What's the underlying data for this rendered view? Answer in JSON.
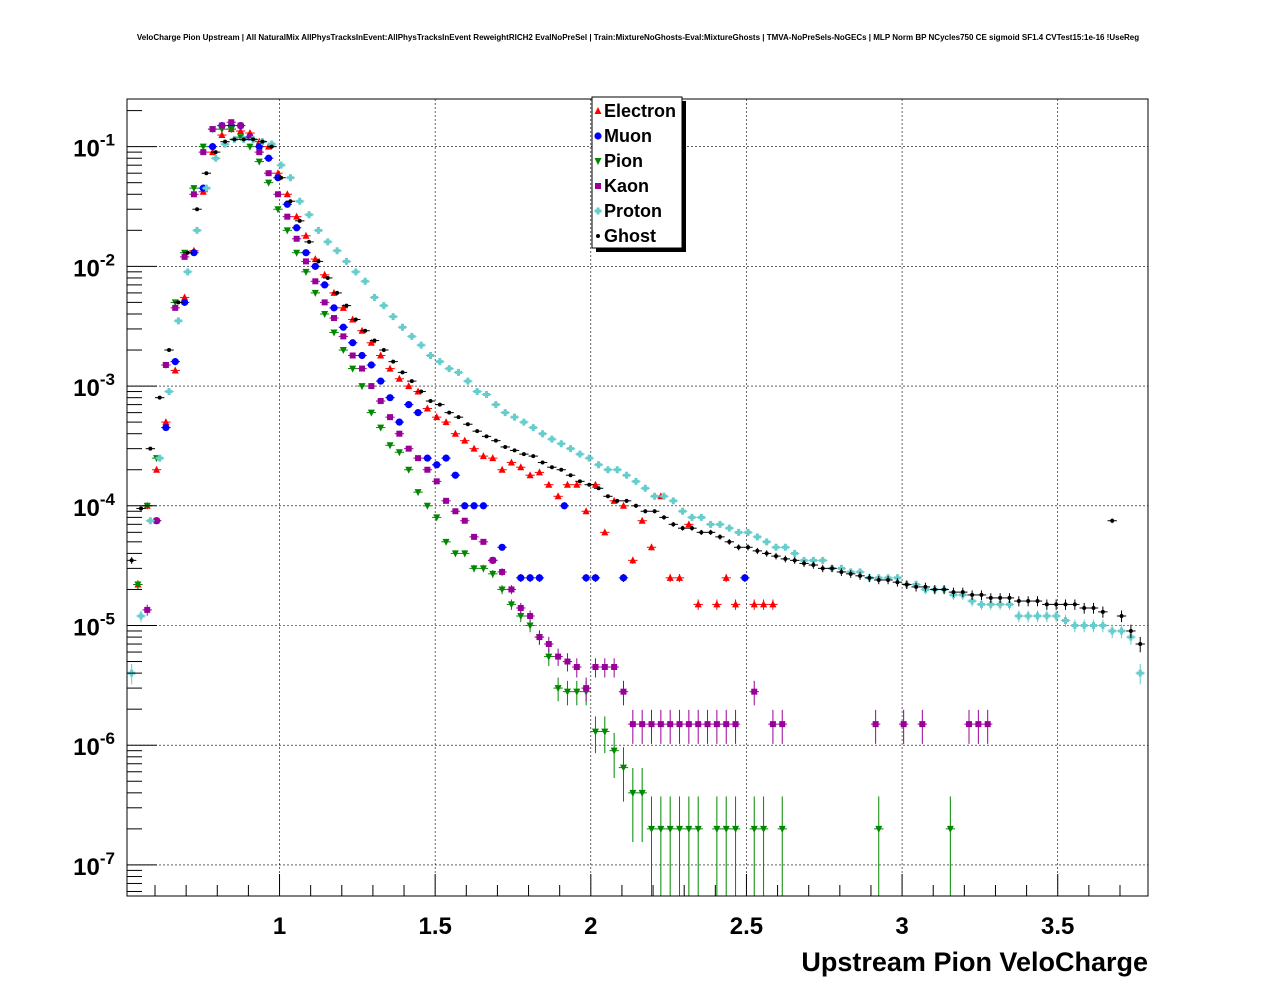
{
  "chart_data": {
    "type": "scatter",
    "title": "VeloCharge Pion Upstream | All NaturalMix AllPhysTracksInEvent:AllPhysTracksInEvent ReweightRICH2 EvalNoPreSel | Train:MixtureNoGhosts-Eval:MixtureGhosts | TMVA-NoPreSels-NoGECs | MLP Norm BP NCycles750 CE sigmoid SF1.4 CVTest15:1e-16 !UseReg",
    "xlabel": "Upstream Pion VeloCharge",
    "ylabel": "",
    "xlim": [
      0.51,
      3.79
    ],
    "ylim": [
      5.5e-08,
      0.25
    ],
    "log_y": true,
    "grid": true,
    "legend_position": "top-center",
    "x_ticks": [
      "1",
      "1.5",
      "2",
      "2.5",
      "3",
      "3.5"
    ],
    "y_ticks": [
      {
        "base": "10",
        "exp": "-1"
      },
      {
        "base": "10",
        "exp": "-2"
      },
      {
        "base": "10",
        "exp": "-3"
      },
      {
        "base": "10",
        "exp": "-4"
      },
      {
        "base": "10",
        "exp": "-5"
      },
      {
        "base": "10",
        "exp": "-6"
      },
      {
        "base": "10",
        "exp": "-7"
      }
    ],
    "series": [
      {
        "name": "Electron",
        "color": "#ff0000",
        "marker": "triangle-up",
        "x": [
          0.545,
          0.575,
          0.605,
          0.635,
          0.665,
          0.695,
          0.725,
          0.755,
          0.785,
          0.815,
          0.845,
          0.875,
          0.905,
          0.935,
          0.965,
          0.995,
          1.025,
          1.055,
          1.085,
          1.115,
          1.145,
          1.175,
          1.205,
          1.235,
          1.265,
          1.295,
          1.325,
          1.355,
          1.385,
          1.415,
          1.445,
          1.475,
          1.505,
          1.535,
          1.565,
          1.595,
          1.625,
          1.655,
          1.685,
          1.715,
          1.745,
          1.775,
          1.805,
          1.835,
          1.865,
          1.895,
          1.925,
          1.955,
          1.985,
          2.015,
          2.045,
          2.075,
          2.105,
          2.135,
          2.165,
          2.195,
          2.225,
          2.255,
          2.285,
          2.315,
          2.345,
          2.405,
          2.435,
          2.465,
          2.525,
          2.555,
          2.585
        ],
        "y": [
          2.2e-05,
          0.0001,
          0.0002,
          0.0005,
          0.00135,
          0.0055,
          0.0135,
          0.042,
          0.09,
          0.125,
          0.14,
          0.135,
          0.13,
          0.11,
          0.1,
          0.06,
          0.04,
          0.026,
          0.018,
          0.0115,
          0.0085,
          0.006,
          0.0045,
          0.0036,
          0.0029,
          0.0023,
          0.0018,
          0.0014,
          0.00115,
          0.001,
          0.0009,
          0.00065,
          0.00055,
          0.0005,
          0.0004,
          0.00035,
          0.0003,
          0.00026,
          0.00025,
          0.0002,
          0.00023,
          0.00021,
          0.00018,
          0.00019,
          0.00015,
          0.00012,
          0.00015,
          0.00015,
          9e-05,
          0.00015,
          6e-05,
          0.00011,
          0.0001,
          3.5e-05,
          7.5e-05,
          4.5e-05,
          0.00012,
          2.5e-05,
          2.5e-05,
          7e-05,
          1.5e-05,
          1.5e-05,
          2.5e-05,
          1.5e-05,
          1.5e-05,
          1.5e-05,
          1.5e-05
        ]
      },
      {
        "name": "Muon",
        "color": "#0000ff",
        "marker": "circle",
        "x": [
          0.605,
          0.635,
          0.665,
          0.695,
          0.725,
          0.755,
          0.785,
          0.815,
          0.845,
          0.875,
          0.905,
          0.935,
          0.965,
          0.995,
          1.025,
          1.055,
          1.085,
          1.115,
          1.145,
          1.175,
          1.205,
          1.235,
          1.265,
          1.295,
          1.325,
          1.355,
          1.385,
          1.415,
          1.445,
          1.475,
          1.505,
          1.535,
          1.565,
          1.595,
          1.625,
          1.655,
          1.685,
          1.715,
          1.775,
          1.805,
          1.835,
          1.915,
          1.985,
          2.015,
          2.105,
          2.495
        ],
        "y": [
          7.5e-05,
          0.00045,
          0.0016,
          0.005,
          0.013,
          0.045,
          0.1,
          0.15,
          0.15,
          0.15,
          0.12,
          0.1,
          0.08,
          0.055,
          0.033,
          0.021,
          0.013,
          0.01,
          0.007,
          0.0045,
          0.0031,
          0.0023,
          0.0018,
          0.0015,
          0.0011,
          0.0008,
          0.0005,
          0.0007,
          0.0006,
          0.00025,
          0.00022,
          0.00025,
          0.00018,
          0.0001,
          0.0001,
          0.0001,
          3.5e-05,
          4.5e-05,
          2.5e-05,
          2.5e-05,
          2.5e-05,
          0.0001,
          2.5e-05,
          2.5e-05,
          2.5e-05,
          2.5e-05
        ]
      },
      {
        "name": "Pion",
        "color": "#008800",
        "marker": "triangle-down",
        "x": [
          0.545,
          0.575,
          0.605,
          0.635,
          0.665,
          0.695,
          0.725,
          0.755,
          0.785,
          0.815,
          0.845,
          0.875,
          0.905,
          0.935,
          0.965,
          0.995,
          1.025,
          1.055,
          1.085,
          1.115,
          1.145,
          1.175,
          1.205,
          1.235,
          1.265,
          1.295,
          1.325,
          1.355,
          1.385,
          1.415,
          1.445,
          1.475,
          1.505,
          1.535,
          1.565,
          1.595,
          1.625,
          1.655,
          1.685,
          1.715,
          1.745,
          1.775,
          1.805,
          1.835,
          1.865,
          1.895,
          1.925,
          1.955,
          1.985,
          2.015,
          2.045,
          2.075,
          2.105,
          2.135,
          2.165,
          2.195,
          2.225,
          2.255,
          2.285,
          2.315,
          2.345,
          2.405,
          2.435,
          2.465,
          2.525,
          2.555,
          2.615,
          2.925,
          3.155
        ],
        "y": [
          2.2e-05,
          0.0001,
          0.00025,
          0.0015,
          0.005,
          0.013,
          0.045,
          0.1,
          0.14,
          0.14,
          0.14,
          0.12,
          0.1,
          0.075,
          0.05,
          0.03,
          0.02,
          0.013,
          0.009,
          0.006,
          0.004,
          0.0028,
          0.002,
          0.0014,
          0.001,
          0.0006,
          0.00045,
          0.00032,
          0.00028,
          0.0002,
          0.00013,
          0.0001,
          8e-05,
          5e-05,
          4e-05,
          4e-05,
          3e-05,
          3e-05,
          2.7e-05,
          2e-05,
          1.5e-05,
          1.2e-05,
          1e-05,
          8e-06,
          5.5e-06,
          3e-06,
          2.8e-06,
          2.8e-06,
          2.8e-06,
          1.3e-06,
          1.3e-06,
          9e-07,
          6.5e-07,
          4e-07,
          4e-07,
          2e-07,
          2e-07,
          2e-07,
          2e-07,
          2e-07,
          2e-07,
          2e-07,
          2e-07,
          2e-07,
          2e-07,
          2e-07,
          2e-07,
          2e-07,
          2e-07
        ]
      },
      {
        "name": "Kaon",
        "color": "#990099",
        "marker": "square",
        "x": [
          0.575,
          0.605,
          0.635,
          0.665,
          0.695,
          0.725,
          0.755,
          0.785,
          0.815,
          0.845,
          0.875,
          0.905,
          0.935,
          0.965,
          0.995,
          1.025,
          1.055,
          1.085,
          1.115,
          1.145,
          1.175,
          1.205,
          1.235,
          1.265,
          1.295,
          1.325,
          1.355,
          1.385,
          1.415,
          1.445,
          1.475,
          1.505,
          1.535,
          1.565,
          1.595,
          1.625,
          1.655,
          1.685,
          1.715,
          1.745,
          1.775,
          1.805,
          1.835,
          1.865,
          1.895,
          1.925,
          1.955,
          1.985,
          2.015,
          2.045,
          2.075,
          2.105,
          2.135,
          2.165,
          2.195,
          2.225,
          2.255,
          2.285,
          2.315,
          2.345,
          2.375,
          2.405,
          2.435,
          2.465,
          2.525,
          2.585,
          2.615,
          2.915,
          3.005,
          3.065,
          3.215,
          3.245,
          3.275
        ],
        "y": [
          1.35e-05,
          7.5e-05,
          0.0015,
          0.0045,
          0.012,
          0.04,
          0.09,
          0.14,
          0.15,
          0.16,
          0.15,
          0.12,
          0.09,
          0.06,
          0.04,
          0.026,
          0.017,
          0.011,
          0.0075,
          0.005,
          0.0037,
          0.0026,
          0.0018,
          0.0014,
          0.001,
          0.00075,
          0.00055,
          0.0004,
          0.0003,
          0.00025,
          0.0002,
          0.00016,
          0.00011,
          9e-05,
          7.5e-05,
          5.5e-05,
          5e-05,
          3.5e-05,
          2.8e-05,
          2e-05,
          1.4e-05,
          1.2e-05,
          8e-06,
          7e-06,
          5.5e-06,
          5e-06,
          4.5e-06,
          3e-06,
          4.5e-06,
          4.5e-06,
          4.5e-06,
          2.8e-06,
          1.5e-06,
          1.5e-06,
          1.5e-06,
          1.5e-06,
          1.5e-06,
          1.5e-06,
          1.5e-06,
          1.5e-06,
          1.5e-06,
          1.5e-06,
          1.5e-06,
          1.5e-06,
          2.8e-06,
          1.5e-06,
          1.5e-06,
          1.5e-06,
          1.5e-06,
          1.5e-06,
          1.5e-06,
          1.5e-06,
          1.5e-06
        ]
      },
      {
        "name": "Proton",
        "color": "#66cccc",
        "marker": "cross",
        "x": [
          0.525,
          0.555,
          0.585,
          0.615,
          0.645,
          0.675,
          0.705,
          0.735,
          0.765,
          0.795,
          0.825,
          0.855,
          0.885,
          0.915,
          0.945,
          0.975,
          1.005,
          1.035,
          1.065,
          1.095,
          1.125,
          1.155,
          1.185,
          1.215,
          1.245,
          1.275,
          1.305,
          1.335,
          1.365,
          1.395,
          1.425,
          1.455,
          1.485,
          1.515,
          1.545,
          1.575,
          1.605,
          1.635,
          1.665,
          1.695,
          1.725,
          1.755,
          1.785,
          1.815,
          1.845,
          1.875,
          1.905,
          1.935,
          1.965,
          1.995,
          2.025,
          2.055,
          2.085,
          2.115,
          2.145,
          2.175,
          2.205,
          2.235,
          2.265,
          2.295,
          2.325,
          2.355,
          2.385,
          2.415,
          2.445,
          2.475,
          2.505,
          2.535,
          2.565,
          2.595,
          2.625,
          2.655,
          2.685,
          2.715,
          2.745,
          2.775,
          2.805,
          2.835,
          2.865,
          2.895,
          2.925,
          2.955,
          2.985,
          3.015,
          3.045,
          3.075,
          3.105,
          3.135,
          3.165,
          3.195,
          3.225,
          3.255,
          3.285,
          3.315,
          3.345,
          3.375,
          3.405,
          3.435,
          3.465,
          3.495,
          3.525,
          3.555,
          3.585,
          3.615,
          3.645,
          3.675,
          3.705,
          3.735,
          3.765
        ],
        "y": [
          4e-06,
          1.2e-05,
          7.5e-05,
          0.00025,
          0.0009,
          0.0035,
          0.009,
          0.02,
          0.045,
          0.08,
          0.105,
          0.115,
          0.115,
          0.115,
          0.11,
          0.105,
          0.07,
          0.055,
          0.035,
          0.027,
          0.02,
          0.016,
          0.0135,
          0.011,
          0.009,
          0.0075,
          0.0055,
          0.0047,
          0.0038,
          0.0031,
          0.0026,
          0.0022,
          0.0018,
          0.0016,
          0.0014,
          0.0013,
          0.0011,
          0.0009,
          0.00085,
          0.0007,
          0.0006,
          0.00055,
          0.0005,
          0.00045,
          0.0004,
          0.00036,
          0.00033,
          0.0003,
          0.00027,
          0.00025,
          0.00022,
          0.0002,
          0.0002,
          0.00018,
          0.00016,
          0.00014,
          0.00012,
          0.00012,
          0.00011,
          9e-05,
          8e-05,
          8e-05,
          7e-05,
          7e-05,
          6.5e-05,
          6e-05,
          6e-05,
          5.5e-05,
          5e-05,
          4.5e-05,
          4.5e-05,
          4e-05,
          3.5e-05,
          3.5e-05,
          3.5e-05,
          3e-05,
          3e-05,
          2.8e-05,
          2.8e-05,
          2.5e-05,
          2.5e-05,
          2.5e-05,
          2.5e-05,
          2.2e-05,
          2.2e-05,
          2e-05,
          2e-05,
          2e-05,
          1.8e-05,
          1.8e-05,
          1.6e-05,
          1.5e-05,
          1.5e-05,
          1.5e-05,
          1.5e-05,
          1.2e-05,
          1.2e-05,
          1.2e-05,
          1.2e-05,
          1.2e-05,
          1.1e-05,
          1e-05,
          1e-05,
          1e-05,
          1e-05,
          9e-06,
          9e-06,
          8e-06,
          4e-06
        ]
      },
      {
        "name": "Ghost",
        "color": "#000000",
        "marker": "dot",
        "x": [
          0.525,
          0.555,
          0.585,
          0.615,
          0.645,
          0.675,
          0.705,
          0.735,
          0.765,
          0.795,
          0.825,
          0.855,
          0.885,
          0.915,
          0.945,
          0.975,
          1.005,
          1.035,
          1.065,
          1.095,
          1.125,
          1.155,
          1.185,
          1.215,
          1.245,
          1.275,
          1.305,
          1.335,
          1.365,
          1.395,
          1.425,
          1.455,
          1.485,
          1.515,
          1.545,
          1.575,
          1.605,
          1.635,
          1.665,
          1.695,
          1.725,
          1.755,
          1.785,
          1.815,
          1.845,
          1.875,
          1.905,
          1.935,
          1.965,
          1.995,
          2.025,
          2.055,
          2.085,
          2.115,
          2.145,
          2.175,
          2.205,
          2.235,
          2.265,
          2.295,
          2.325,
          2.355,
          2.385,
          2.415,
          2.445,
          2.475,
          2.505,
          2.535,
          2.565,
          2.595,
          2.625,
          2.655,
          2.685,
          2.715,
          2.745,
          2.775,
          2.805,
          2.835,
          2.865,
          2.895,
          2.925,
          2.955,
          2.985,
          3.015,
          3.045,
          3.075,
          3.105,
          3.135,
          3.165,
          3.195,
          3.225,
          3.255,
          3.285,
          3.315,
          3.345,
          3.375,
          3.405,
          3.435,
          3.465,
          3.495,
          3.525,
          3.555,
          3.585,
          3.615,
          3.645,
          3.675,
          3.705,
          3.735,
          3.765
        ],
        "y": [
          3.5e-05,
          9.5e-05,
          0.0003,
          0.0008,
          0.002,
          0.005,
          0.013,
          0.03,
          0.06,
          0.09,
          0.11,
          0.115,
          0.115,
          0.115,
          0.11,
          0.1,
          0.055,
          0.035,
          0.024,
          0.016,
          0.011,
          0.008,
          0.006,
          0.0047,
          0.0036,
          0.0029,
          0.0024,
          0.002,
          0.0016,
          0.0013,
          0.0011,
          0.0009,
          0.00075,
          0.0007,
          0.0006,
          0.00055,
          0.00048,
          0.00042,
          0.00038,
          0.00035,
          0.00031,
          0.00029,
          0.00027,
          0.00026,
          0.00023,
          0.00021,
          0.0002,
          0.00018,
          0.00016,
          0.00015,
          0.00014,
          0.00012,
          0.00011,
          0.00011,
          0.0001,
          9e-05,
          9e-05,
          8e-05,
          7e-05,
          6.5e-05,
          6.5e-05,
          6e-05,
          6e-05,
          5.5e-05,
          5e-05,
          4.5e-05,
          4.5e-05,
          4.2e-05,
          4e-05,
          3.8e-05,
          3.6e-05,
          3.5e-05,
          3.3e-05,
          3.2e-05,
          3e-05,
          3e-05,
          2.8e-05,
          2.7e-05,
          2.6e-05,
          2.5e-05,
          2.4e-05,
          2.4e-05,
          2.3e-05,
          2.2e-05,
          2.1e-05,
          2.1e-05,
          2e-05,
          2e-05,
          1.9e-05,
          1.9e-05,
          1.8e-05,
          1.8e-05,
          1.7e-05,
          1.7e-05,
          1.7e-05,
          1.6e-05,
          1.6e-05,
          1.6e-05,
          1.5e-05,
          1.5e-05,
          1.5e-05,
          1.5e-05,
          1.4e-05,
          1.4e-05,
          1.3e-05,
          7.5e-05,
          1.2e-05,
          9e-06,
          7e-06
        ]
      }
    ]
  }
}
